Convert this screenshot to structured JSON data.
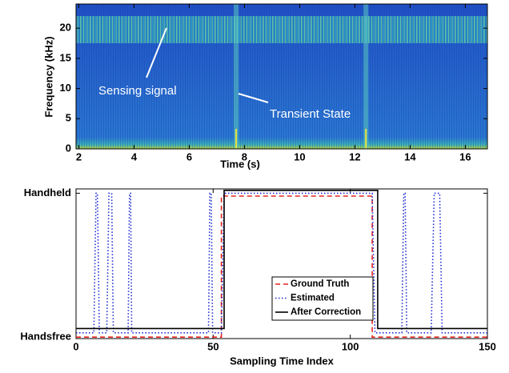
{
  "chart_data": [
    {
      "type": "spectrogram",
      "xlabel": "Time (s)",
      "ylabel": "Frequency (kHz)",
      "xlim": [
        1.9,
        16.8
      ],
      "ylim": [
        0,
        24
      ],
      "xticks": [
        2,
        4,
        6,
        8,
        10,
        12,
        14,
        16
      ],
      "yticks": [
        0,
        5,
        10,
        15,
        20
      ],
      "sensing_band": [
        17.5,
        22
      ],
      "transient_x": [
        7.7,
        12.4
      ],
      "annotations": [
        "Sensing signal",
        "Transient State"
      ]
    },
    {
      "type": "line",
      "xlabel": "Sampling Time Index",
      "xlim": [
        0,
        150
      ],
      "ylim": [
        -0.01,
        1.03
      ],
      "xticks": [
        0,
        50,
        100,
        150
      ],
      "yticks": [
        {
          "value": 0,
          "label": "Handsfree"
        },
        {
          "value": 1,
          "label": "Handheld"
        }
      ],
      "legend": "lower right",
      "series": [
        {
          "name": "Ground Truth",
          "color": "#e8261e",
          "dash": "6,4",
          "x": [
            0,
            53,
            53,
            108,
            108,
            150
          ],
          "values": [
            0,
            0,
            0.98,
            0.98,
            0,
            0
          ]
        },
        {
          "name": "Estimated",
          "color": "#1f2bd1",
          "dash": "1.5,2.5",
          "x": [
            0,
            6.5,
            7.3,
            7.8,
            8.5,
            11.2,
            12,
            13,
            13.6,
            19,
            19.5,
            19.9,
            20.3,
            48.3,
            48.8,
            49.3,
            49.8,
            53,
            54,
            108,
            109,
            118.8,
            119.5,
            120,
            120.6,
            129.5,
            130.6,
            132.6,
            133.5,
            150
          ],
          "values": [
            0.03,
            0.03,
            1,
            1,
            0.03,
            0.03,
            1,
            1,
            0.03,
            0.03,
            1,
            1,
            0.03,
            0.03,
            1,
            1,
            0.03,
            0.03,
            1,
            1,
            0.03,
            0.03,
            1,
            1,
            0.03,
            0.03,
            1,
            1,
            0.03,
            0.03
          ]
        },
        {
          "name": "After Correction",
          "color": "#000000",
          "dash": "",
          "x": [
            0,
            54,
            54,
            110,
            110,
            150
          ],
          "values": [
            0.06,
            0.06,
            1.02,
            1.02,
            0.06,
            0.06
          ]
        }
      ]
    }
  ]
}
